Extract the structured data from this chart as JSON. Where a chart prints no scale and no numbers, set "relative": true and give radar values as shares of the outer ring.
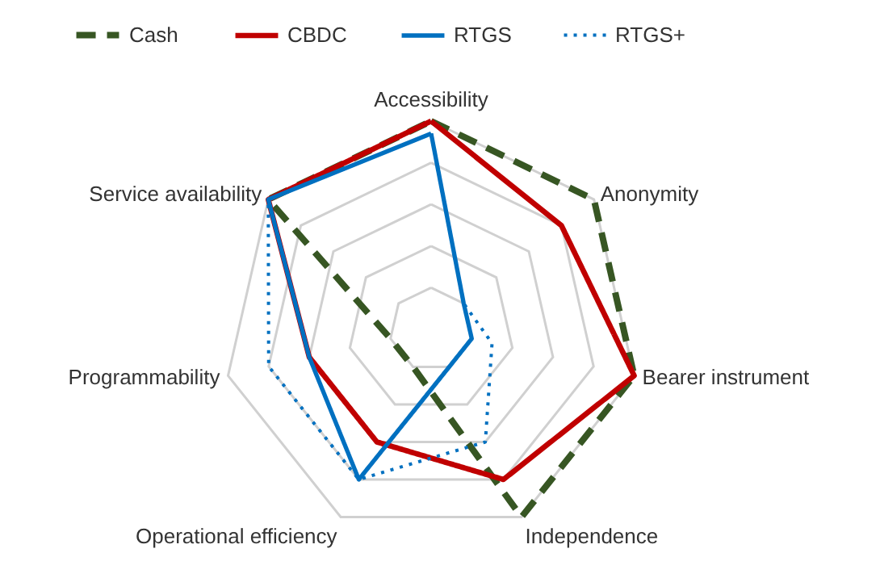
{
  "chart_data": {
    "type": "radar",
    "relative": true,
    "grid": true,
    "legend": "top",
    "marker": "none",
    "categories": [
      "Accessibility",
      "Anonymity",
      "Bearer instrument",
      "Independence",
      "Operational efficiency",
      "Programmability",
      "Service availability"
    ],
    "series": [
      {
        "name": "Cash",
        "color": "#375623",
        "line_style": "dashed",
        "values": [
          1,
          1,
          1,
          1,
          0.2,
          0.2,
          1
        ]
      },
      {
        "name": "CBDC",
        "color": "#c00000",
        "line_style": "solid",
        "values": [
          1,
          0.8,
          1,
          0.8,
          0.6,
          0.6,
          1
        ]
      },
      {
        "name": "RTGS",
        "color": "#0070c0",
        "line_style": "solid",
        "values": [
          0.94,
          0.2,
          0.2,
          0.2,
          0.8,
          0.6,
          1
        ]
      },
      {
        "name": "RTGS+",
        "color": "#0070c0",
        "line_style": "dotted",
        "values": [
          0.94,
          0.2,
          0.3,
          0.6,
          0.8,
          0.8,
          1
        ]
      }
    ]
  }
}
